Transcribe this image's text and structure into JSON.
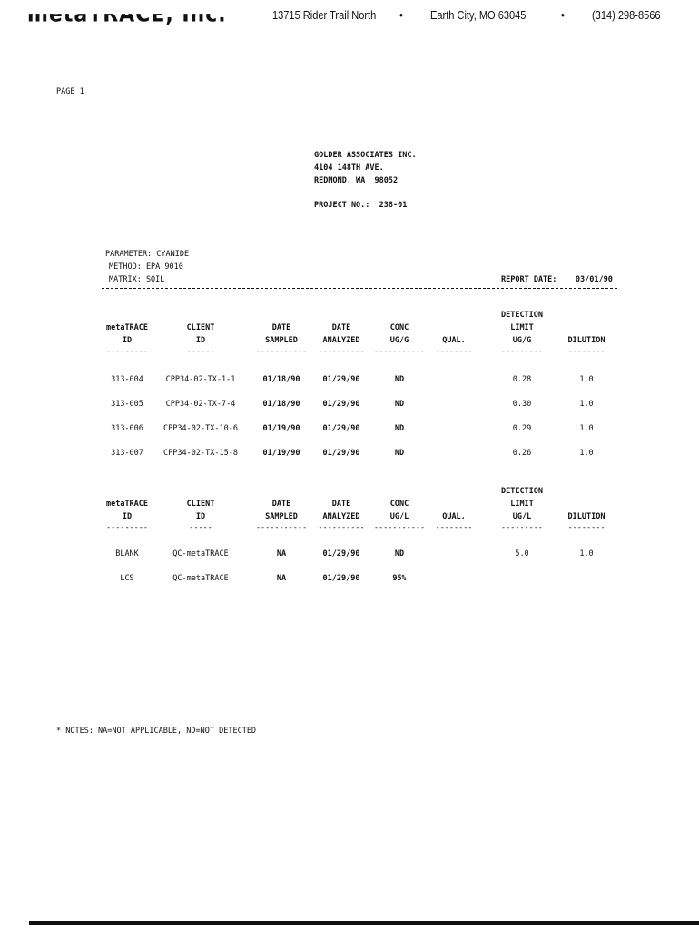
{
  "letterhead": {
    "logo": "metaTRACE, Inc.",
    "street": "13715 Rider Trail North",
    "city": "Earth City, MO 63045",
    "phone": "(314) 298-8566",
    "bullet": "•"
  },
  "page_label": "PAGE 1",
  "client": {
    "name": "GOLDER ASSOCIATES INC.",
    "street": "4104 148TH AVE.",
    "city": "REDMOND, WA  98052",
    "project": "PROJECT NO.:  238-01"
  },
  "parameter": "PARAMETER: CYANIDE",
  "method": "METHOD: EPA 9010",
  "matrix": "MATRIX: SOIL",
  "report_date": "REPORT DATE:    03/01/90",
  "table1": {
    "headers": [
      [
        "",
        "metaTRACE",
        "ID"
      ],
      [
        "",
        "CLIENT",
        "ID"
      ],
      [
        "",
        "DATE",
        "SAMPLED"
      ],
      [
        "",
        "DATE",
        "ANALYZED"
      ],
      [
        "",
        "CONC",
        "UG/G"
      ],
      [
        "",
        "",
        "QUAL."
      ],
      [
        "DETECTION",
        "LIMIT",
        "UG/G"
      ],
      [
        "",
        "",
        "DILUTION"
      ]
    ],
    "dashes": [
      "---------",
      "------",
      "-----------",
      "----------",
      "-----------",
      "--------",
      "---------",
      "--------"
    ],
    "rows": [
      [
        "313-004",
        "CPP34-02-TX-1-1",
        "01/18/90",
        "01/29/90",
        "ND",
        "",
        "0.28",
        "1.0"
      ],
      [
        "313-005",
        "CPP34-02-TX-7-4",
        "01/18/90",
        "01/29/90",
        "ND",
        "",
        "0.30",
        "1.0"
      ],
      [
        "313-006",
        "CPP34-02-TX-10-6",
        "01/19/90",
        "01/29/90",
        "ND",
        "",
        "0.29",
        "1.0"
      ],
      [
        "313-007",
        "CPP34-02-TX-15-8",
        "01/19/90",
        "01/29/90",
        "ND",
        "",
        "0.26",
        "1.0"
      ]
    ]
  },
  "table2": {
    "headers": [
      [
        "",
        "metaTRACE",
        "ID"
      ],
      [
        "",
        "CLIENT",
        "ID"
      ],
      [
        "",
        "DATE",
        "SAMPLED"
      ],
      [
        "",
        "DATE",
        "ANALYZED"
      ],
      [
        "",
        "CONC",
        "UG/L"
      ],
      [
        "",
        "",
        "QUAL."
      ],
      [
        "DETECTION",
        "LIMIT",
        "UG/L"
      ],
      [
        "",
        "",
        "DILUTION"
      ]
    ],
    "dashes": [
      "---------",
      "-----",
      "-----------",
      "----------",
      "-----------",
      "--------",
      "---------",
      "--------"
    ],
    "rows": [
      [
        "BLANK",
        "QC-metaTRACE",
        "NA",
        "01/29/90",
        "ND",
        "",
        "5.0",
        "1.0"
      ],
      [
        "LCS",
        "QC-metaTRACE",
        "NA",
        "01/29/90",
        "95%",
        "",
        "",
        " "
      ]
    ]
  },
  "notes": "* NOTES: NA=NOT APPLICABLE, ND=NOT DETECTED"
}
